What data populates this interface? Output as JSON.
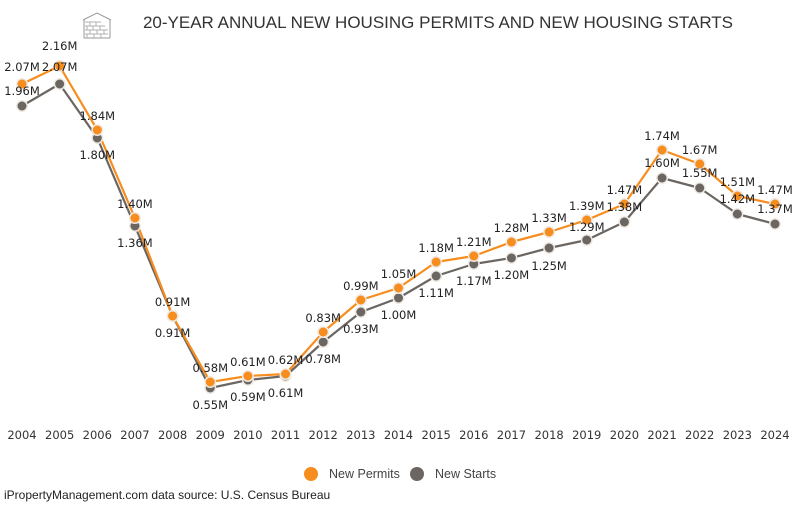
{
  "chart_data": {
    "type": "line",
    "title": "20-YEAR ANNUAL NEW HOUSING PERMITS AND NEW HOUSING STARTS",
    "xlabel": "",
    "ylabel": "",
    "x": [
      "2004",
      "2005",
      "2006",
      "2007",
      "2008",
      "2009",
      "2010",
      "2011",
      "2012",
      "2013",
      "2014",
      "2015",
      "2016",
      "2017",
      "2018",
      "2019",
      "2020",
      "2021",
      "2022",
      "2023",
      "2024"
    ],
    "ylim": [
      0,
      2.49
    ],
    "grid": false,
    "legend_position": "bottom-center",
    "series": [
      {
        "name": "New Permits",
        "color": "#f68d1e",
        "values": [
          2.07,
          2.16,
          1.84,
          1.4,
          0.91,
          0.58,
          0.61,
          0.62,
          0.83,
          0.99,
          1.05,
          1.18,
          1.21,
          1.28,
          1.33,
          1.39,
          1.47,
          1.74,
          1.67,
          1.51,
          1.47
        ],
        "labels": [
          "2.07M",
          "2.16M",
          "1.84M",
          "1.40M",
          "0.91M",
          "0.58M",
          "0.61M",
          "0.62M",
          "0.83M",
          "0.99M",
          "1.05M",
          "1.18M",
          "1.21M",
          "1.28M",
          "1.33M",
          "1.39M",
          "1.47M",
          "1.74M",
          "1.67M",
          "1.51M",
          "1.47M"
        ]
      },
      {
        "name": "New Starts",
        "color": "#6b6662",
        "values": [
          1.96,
          2.07,
          1.8,
          1.36,
          0.91,
          0.55,
          0.59,
          0.61,
          0.78,
          0.93,
          1.0,
          1.11,
          1.17,
          1.2,
          1.25,
          1.29,
          1.38,
          1.6,
          1.55,
          1.42,
          1.37
        ],
        "labels": [
          "1.96M",
          "2.07M",
          "1.80M",
          "1.36M",
          "0.91M",
          "0.55M",
          "0.59M",
          "0.61M",
          "0.78M",
          "0.93M",
          "1.00M",
          "1.11M",
          "1.17M",
          "1.20M",
          "1.25M",
          "1.29M",
          "1.38M",
          "1.60M",
          "1.55M",
          "1.42M",
          "1.37M"
        ]
      }
    ]
  },
  "header": {
    "icon": "house-brick-icon"
  },
  "footer": {
    "source": "iPropertyManagement.com data source: U.S. Census Bureau"
  }
}
